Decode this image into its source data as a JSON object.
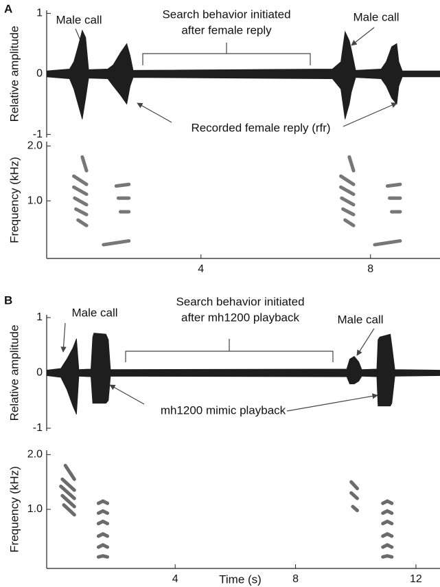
{
  "panel_labels": [
    "A",
    "B"
  ],
  "chart_data": [
    {
      "type": "area",
      "ylabel": "Relative amplitude",
      "color": "#1e1e1e",
      "xlim": [
        0.36,
        9.64
      ],
      "ylim": [
        -1.05,
        1.05
      ],
      "yticks": [
        -1,
        0,
        1
      ],
      "x": [
        0.36,
        0.9,
        1.0,
        1.1,
        1.2,
        1.28,
        1.35,
        1.8,
        1.93,
        2.1,
        2.25,
        2.33,
        2.4,
        7.1,
        7.3,
        7.4,
        7.5,
        7.55,
        7.65,
        8.25,
        8.37,
        8.5,
        8.62,
        8.67,
        8.75,
        9.64
      ],
      "series": [
        {
          "color": "#1e1e1e",
          "values": [
            0.05,
            0.08,
            0.2,
            0.45,
            0.72,
            0.6,
            0.07,
            0.08,
            0.15,
            0.35,
            0.5,
            0.3,
            0.06,
            0.08,
            0.2,
            0.7,
            0.55,
            0.4,
            0.06,
            0.08,
            0.2,
            0.45,
            0.5,
            0.2,
            0.05,
            0.05
          ]
        },
        {
          "color": "#1e1e1e",
          "values": [
            -0.05,
            -0.08,
            -0.25,
            -0.5,
            -0.75,
            -0.4,
            -0.07,
            -0.08,
            -0.2,
            -0.35,
            -0.5,
            -0.2,
            -0.06,
            -0.08,
            -0.25,
            -0.75,
            -0.5,
            -0.3,
            -0.06,
            -0.08,
            -0.2,
            -0.4,
            -0.5,
            -0.2,
            -0.05,
            -0.05
          ]
        }
      ],
      "annotations": [
        "Male call",
        "Search behavior initiated",
        "after female reply",
        "Male call",
        "Recorded female reply (rfr)"
      ]
    },
    {
      "type": "spectrogram",
      "ylabel": "Frequency  (kHz)",
      "color": "#4a4a4a",
      "xlim": [
        0.36,
        9.64
      ],
      "ylim": [
        -0.05,
        2.08
      ],
      "xticks": [
        4,
        8
      ],
      "yticks": [
        {
          "value": 1,
          "label": "1.0"
        },
        {
          "value": 2,
          "label": "2.0"
        }
      ],
      "traces": [
        {
          "x": [
            1.0,
            1.3
          ],
          "y": [
            1.45,
            1.3
          ]
        },
        {
          "x": [
            1.0,
            1.3
          ],
          "y": [
            1.25,
            1.12
          ]
        },
        {
          "x": [
            1.02,
            1.3
          ],
          "y": [
            1.05,
            0.93
          ]
        },
        {
          "x": [
            1.05,
            1.3
          ],
          "y": [
            0.85,
            0.75
          ]
        },
        {
          "x": [
            1.1,
            1.3
          ],
          "y": [
            0.65,
            0.55
          ]
        },
        {
          "x": [
            1.2,
            1.3
          ],
          "y": [
            1.8,
            1.55
          ]
        },
        {
          "x": [
            2.0,
            2.3
          ],
          "y": [
            1.27,
            1.3
          ]
        },
        {
          "x": [
            2.05,
            2.3
          ],
          "y": [
            1.05,
            1.05
          ]
        },
        {
          "x": [
            2.1,
            2.3
          ],
          "y": [
            0.8,
            0.8
          ]
        },
        {
          "x": [
            1.7,
            2.3
          ],
          "y": [
            0.2,
            0.27
          ]
        },
        {
          "x": [
            7.3,
            7.6
          ],
          "y": [
            1.45,
            1.3
          ]
        },
        {
          "x": [
            7.3,
            7.6
          ],
          "y": [
            1.25,
            1.12
          ]
        },
        {
          "x": [
            7.32,
            7.6
          ],
          "y": [
            1.05,
            0.93
          ]
        },
        {
          "x": [
            7.35,
            7.6
          ],
          "y": [
            0.85,
            0.75
          ]
        },
        {
          "x": [
            7.4,
            7.6
          ],
          "y": [
            0.65,
            0.55
          ]
        },
        {
          "x": [
            7.5,
            7.6
          ],
          "y": [
            1.8,
            1.55
          ]
        },
        {
          "x": [
            8.4,
            8.7
          ],
          "y": [
            1.27,
            1.3
          ]
        },
        {
          "x": [
            8.45,
            8.7
          ],
          "y": [
            1.05,
            1.05
          ]
        },
        {
          "x": [
            8.5,
            8.7
          ],
          "y": [
            0.8,
            0.8
          ]
        },
        {
          "x": [
            8.1,
            8.7
          ],
          "y": [
            0.2,
            0.27
          ]
        }
      ]
    },
    {
      "type": "area",
      "ylabel": "Relative amplitude",
      "color": "#1e1e1e",
      "xlim": [
        -0.27,
        12.8
      ],
      "ylim": [
        -1.05,
        1.05
      ],
      "yticks": [
        -1,
        0,
        1
      ],
      "x": [
        -0.27,
        0.2,
        0.4,
        0.6,
        0.72,
        0.8,
        1.2,
        1.26,
        1.3,
        1.7,
        1.78,
        1.85,
        9.7,
        9.8,
        9.95,
        10.1,
        10.2,
        10.7,
        10.74,
        10.8,
        11.15,
        11.2,
        11.3,
        12.8
      ],
      "series": [
        {
          "color": "#1e1e1e",
          "values": [
            0.05,
            0.08,
            0.25,
            0.45,
            0.62,
            0.06,
            0.07,
            0.65,
            0.72,
            0.7,
            0.6,
            0.06,
            0.07,
            0.25,
            0.3,
            0.2,
            0.06,
            0.07,
            0.6,
            0.65,
            0.7,
            0.5,
            0.06,
            0.05
          ]
        },
        {
          "color": "#1e1e1e",
          "values": [
            -0.05,
            -0.08,
            -0.3,
            -0.6,
            -0.75,
            -0.06,
            -0.07,
            -0.55,
            -0.55,
            -0.55,
            -0.5,
            -0.06,
            -0.07,
            -0.2,
            -0.2,
            -0.15,
            -0.06,
            -0.07,
            -0.6,
            -0.6,
            -0.6,
            -0.55,
            -0.06,
            -0.05
          ]
        }
      ],
      "annotations": [
        "Male call",
        "Search behavior initiated",
        "after mh1200 playback",
        "Male call",
        "mh1200 mimic playback"
      ]
    },
    {
      "type": "spectrogram",
      "ylabel": "Frequency  (kHz)",
      "xlabel": "Time (s)",
      "color": "#3a3a3a",
      "xlim": [
        -0.27,
        12.8
      ],
      "ylim": [
        -0.08,
        2.08
      ],
      "xticks": [
        4,
        8,
        12
      ],
      "yticks": [
        {
          "value": 1,
          "label": "1.0"
        },
        {
          "value": 2,
          "label": "2.0"
        }
      ],
      "traces": [
        {
          "x": [
            0.35,
            0.65
          ],
          "y": [
            1.8,
            1.55
          ]
        },
        {
          "x": [
            0.25,
            0.65
          ],
          "y": [
            1.55,
            1.35
          ]
        },
        {
          "x": [
            0.2,
            0.65
          ],
          "y": [
            1.42,
            1.2
          ]
        },
        {
          "x": [
            0.25,
            0.65
          ],
          "y": [
            1.25,
            1.05
          ]
        },
        {
          "x": [
            0.3,
            0.65
          ],
          "y": [
            1.08,
            0.9
          ]
        },
        {
          "x": [
            1.45,
            1.6,
            1.75
          ],
          "y": [
            1.11,
            1.15,
            1.11
          ]
        },
        {
          "x": [
            1.45,
            1.6,
            1.75
          ],
          "y": [
            0.93,
            0.97,
            0.93
          ]
        },
        {
          "x": [
            1.45,
            1.6,
            1.75
          ],
          "y": [
            0.74,
            0.78,
            0.74
          ]
        },
        {
          "x": [
            1.45,
            1.6,
            1.75
          ],
          "y": [
            0.51,
            0.55,
            0.51
          ]
        },
        {
          "x": [
            1.45,
            1.6,
            1.75
          ],
          "y": [
            0.31,
            0.35,
            0.31
          ]
        },
        {
          "x": [
            1.45,
            1.6,
            1.75
          ],
          "y": [
            0.13,
            0.15,
            0.13
          ]
        },
        {
          "x": [
            9.85,
            10.05
          ],
          "y": [
            1.5,
            1.38
          ]
        },
        {
          "x": [
            9.85,
            10.05
          ],
          "y": [
            1.3,
            1.2
          ]
        },
        {
          "x": [
            9.9,
            10.05
          ],
          "y": [
            1.05,
            0.98
          ]
        },
        {
          "x": [
            10.9,
            11.05,
            11.2
          ],
          "y": [
            1.11,
            1.15,
            1.11
          ]
        },
        {
          "x": [
            10.9,
            11.05,
            11.2
          ],
          "y": [
            0.93,
            0.97,
            0.93
          ]
        },
        {
          "x": [
            10.9,
            11.05,
            11.2
          ],
          "y": [
            0.74,
            0.78,
            0.74
          ]
        },
        {
          "x": [
            10.9,
            11.05,
            11.2
          ],
          "y": [
            0.51,
            0.55,
            0.51
          ]
        },
        {
          "x": [
            10.9,
            11.05,
            11.2
          ],
          "y": [
            0.31,
            0.35,
            0.31
          ]
        },
        {
          "x": [
            10.9,
            11.05,
            11.2
          ],
          "y": [
            0.13,
            0.15,
            0.13
          ]
        }
      ]
    }
  ]
}
